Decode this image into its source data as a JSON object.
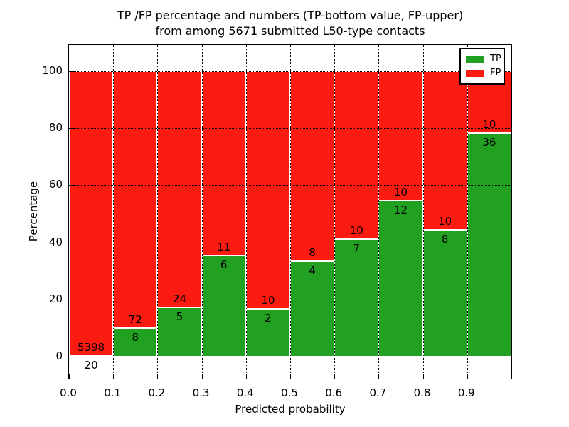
{
  "title": {
    "line1": "TP /FP percentage and numbers (TP-bottom value, FP-upper)",
    "line2": "from among 5671 submitted L50-type contacts"
  },
  "total_submitted": 5671,
  "chart_data": {
    "type": "bar",
    "stacked": true,
    "normalized_to": 100,
    "title_line1": "TP /FP percentage and numbers (TP-bottom value, FP-upper)",
    "title_line2": "from among 5671 submitted L50-type contacts",
    "xlabel": "Predicted probability",
    "ylabel": "Percentage",
    "bins": [
      "0.0-0.1",
      "0.1-0.2",
      "0.2-0.3",
      "0.3-0.4",
      "0.4-0.5",
      "0.5-0.6",
      "0.6-0.7",
      "0.7-0.8",
      "0.8-0.9",
      "0.9-1.0"
    ],
    "series": [
      {
        "name": "TP",
        "color": "#22a022",
        "counts": [
          20,
          8,
          5,
          6,
          2,
          4,
          7,
          12,
          8,
          36
        ]
      },
      {
        "name": "FP",
        "color": "#fb1b10",
        "counts": [
          5398,
          72,
          24,
          11,
          10,
          8,
          10,
          10,
          10,
          10
        ]
      }
    ],
    "tp_percent": [
      0.37,
      10.0,
      17.24,
      35.29,
      16.67,
      33.33,
      41.18,
      54.55,
      44.44,
      78.26
    ],
    "bar_value_labels": "FP count shown above TP/FP boundary, TP count shown below boundary",
    "x_ticks": [
      "0.0",
      "0.1",
      "0.2",
      "0.3",
      "0.4",
      "0.5",
      "0.6",
      "0.7",
      "0.8",
      "0.9"
    ],
    "y_ticks": [
      0,
      20,
      40,
      60,
      80,
      100
    ],
    "xlim": [
      0.0,
      1.0
    ],
    "ylim": [
      -8,
      109
    ],
    "grid": "dotted black, horizontal and vertical, drawn over bars",
    "legend": {
      "position": "upper right",
      "entries": [
        {
          "label": "TP"
        },
        {
          "label": "FP"
        }
      ]
    }
  }
}
